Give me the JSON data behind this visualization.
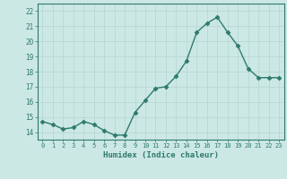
{
  "x": [
    0,
    1,
    2,
    3,
    4,
    5,
    6,
    7,
    8,
    9,
    10,
    11,
    12,
    13,
    14,
    15,
    16,
    17,
    18,
    19,
    20,
    21,
    22,
    23
  ],
  "y": [
    14.7,
    14.5,
    14.2,
    14.3,
    14.7,
    14.5,
    14.1,
    13.8,
    13.8,
    15.3,
    16.1,
    16.9,
    17.0,
    17.7,
    18.7,
    20.6,
    21.2,
    21.6,
    20.6,
    19.7,
    18.2,
    17.6,
    17.6,
    17.6
  ],
  "xlabel": "Humidex (Indice chaleur)",
  "ylim": [
    13.5,
    22.5
  ],
  "xlim": [
    -0.5,
    23.5
  ],
  "yticks": [
    14,
    15,
    16,
    17,
    18,
    19,
    20,
    21,
    22
  ],
  "xticks": [
    0,
    1,
    2,
    3,
    4,
    5,
    6,
    7,
    8,
    9,
    10,
    11,
    12,
    13,
    14,
    15,
    16,
    17,
    18,
    19,
    20,
    21,
    22,
    23
  ],
  "line_color": "#2d7a6e",
  "marker_color": "#2d7a6e",
  "bg_color": "#cce8e4",
  "grid_color": "#b8d8d4",
  "label_color": "#2d7a6e",
  "tick_color": "#2d7a6e"
}
